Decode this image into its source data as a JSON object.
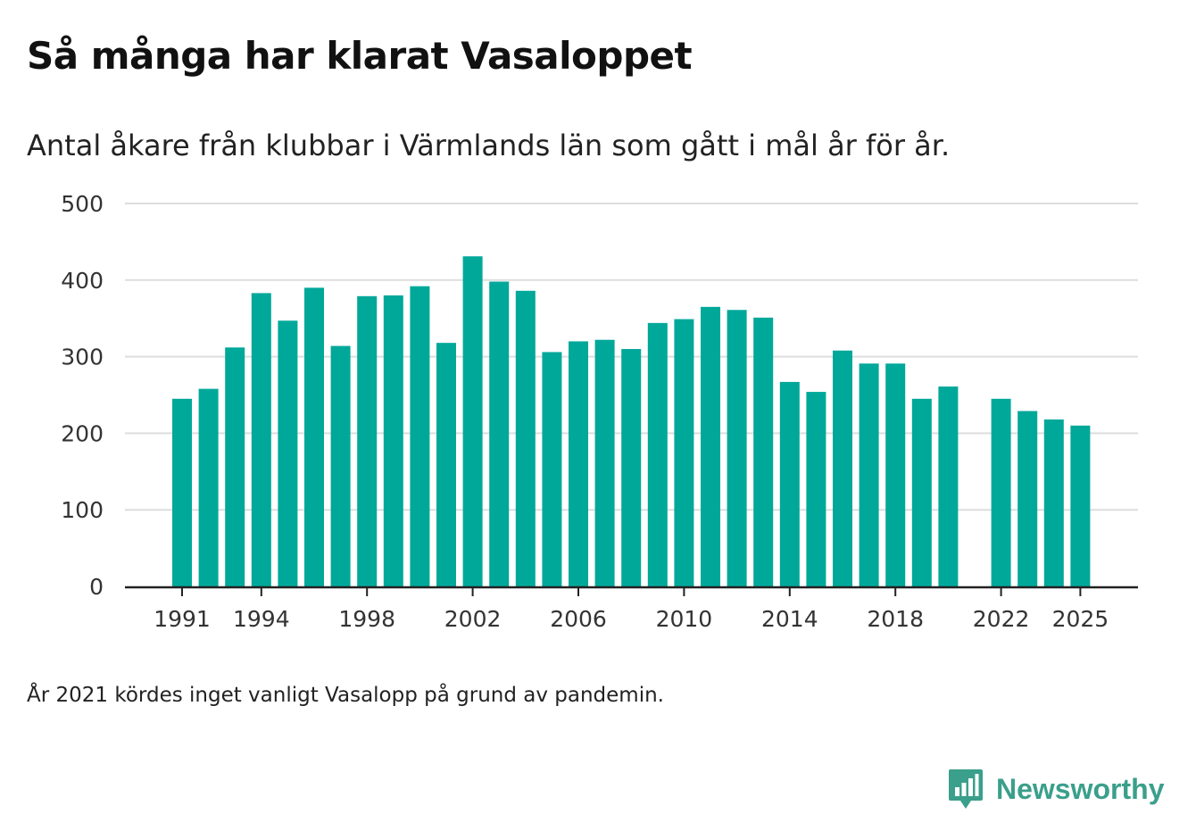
{
  "brand": {
    "name": "Newsworthy",
    "logo_icon": "bar-chart-speech-bubble-icon",
    "color": "#3a9f8b"
  },
  "colors": {
    "bar": "#00a89a",
    "grid": "#dddddd",
    "axis": "#222222"
  },
  "note": "År 2021 kördes inget vanligt Vasalopp på grund av pandemin.",
  "chart_data": {
    "type": "bar",
    "title": "Så många har klarat Vasaloppet",
    "subtitle": "Antal åkare från klubbar i Värmlands län som gått i mål år för år.",
    "xlabel": "",
    "ylabel": "",
    "ylim": [
      0,
      500
    ],
    "yticks": [
      0,
      100,
      200,
      300,
      400,
      500
    ],
    "xtick_labels": [
      "1991",
      "1994",
      "1998",
      "2002",
      "2006",
      "2010",
      "2014",
      "2018",
      "2022",
      "2025"
    ],
    "grid": true,
    "x": [
      1991,
      1992,
      1993,
      1994,
      1995,
      1996,
      1997,
      1998,
      1999,
      2000,
      2001,
      2002,
      2003,
      2004,
      2005,
      2006,
      2007,
      2008,
      2009,
      2010,
      2011,
      2012,
      2013,
      2014,
      2015,
      2016,
      2017,
      2018,
      2019,
      2020,
      2021,
      2022,
      2023,
      2024,
      2025
    ],
    "values": [
      245,
      258,
      312,
      383,
      347,
      390,
      314,
      379,
      380,
      392,
      318,
      431,
      398,
      386,
      306,
      320,
      322,
      310,
      344,
      349,
      365,
      361,
      351,
      267,
      254,
      308,
      291,
      291,
      245,
      261,
      null,
      245,
      229,
      218,
      210
    ]
  }
}
